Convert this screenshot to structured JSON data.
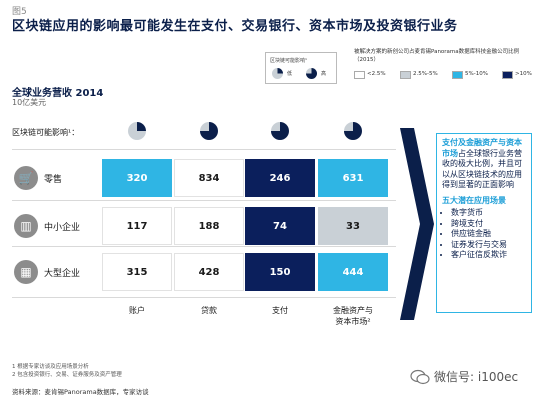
{
  "figure_label": "图5",
  "title": "区块链应用的影响最可能发生在支付、交易银行、资本市场及投资银行业务",
  "top_legend": {
    "title": "区块链可能影响¹",
    "low": "低",
    "high": "高"
  },
  "right_legend": {
    "title": "被解决方案的新创公司占麦肯锡Panorama数据库科技金融公司比例（2015）",
    "items": [
      {
        "label": "<2.5%",
        "color": "#ffffff"
      },
      {
        "label": "2.5%-5%",
        "color": "#c9d0d6"
      },
      {
        "label": "5%-10%",
        "color": "#2fb5e4"
      },
      {
        "label": ">10%",
        "color": "#0b1f5c"
      }
    ]
  },
  "chart_title": "全球业务营收 2014",
  "chart_subtitle": "10亿美元",
  "impact_label": "区块链可能影响¹：",
  "chart_data": {
    "type": "table",
    "title": "全球业务营收 2014",
    "unit": "10亿美元",
    "columns": [
      "账户",
      "贷款",
      "支付",
      "金融资产与资本市场²"
    ],
    "column_impact": [
      0.25,
      0.75,
      0.75,
      0.75
    ],
    "rows": [
      {
        "name": "零售",
        "icon": "cart-icon",
        "values": [
          320,
          834,
          246,
          631
        ],
        "colors": [
          "#2fb5e4",
          "#ffffff",
          "#0b1f5c",
          "#2fb5e4"
        ]
      },
      {
        "name": "中小企业",
        "icon": "building-icon",
        "values": [
          117,
          188,
          74,
          33
        ],
        "colors": [
          "#ffffff",
          "#ffffff",
          "#0b1f5c",
          "#c9d0d6"
        ]
      },
      {
        "name": "大型企业",
        "icon": "city-icon",
        "values": [
          315,
          428,
          150,
          444
        ],
        "colors": [
          "#ffffff",
          "#ffffff",
          "#0b1f5c",
          "#2fb5e4"
        ]
      }
    ]
  },
  "side_box": {
    "hl1": "支付及金融资产与资本市场",
    "text1": "占全球银行业务营收的极大比例，并且可以从区块链技术的应用得到显著的正面影响",
    "heading2": "五大潜在应用场景",
    "items": [
      "数字货币",
      "跨境支付",
      "供应链金融",
      "证券发行与交易",
      "客户征信反欺诈"
    ]
  },
  "footnotes": [
    "1 根据专家访谈及应用场景分析",
    "2 包含投资银行、交易、证券服务及资产管理"
  ],
  "source": "资料来源：麦肯锡Panorama数据库，专家访谈",
  "watermark": "微信号: i100ec"
}
